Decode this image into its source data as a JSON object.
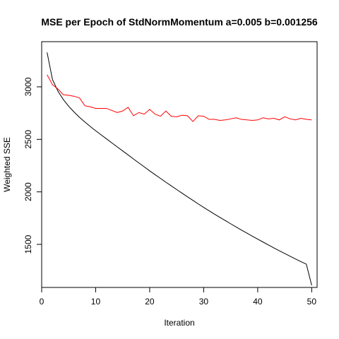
{
  "chart_data": {
    "type": "line",
    "title": "MSE per Epoch of StdNormMomentum a=0.005 b=0.001256",
    "xlabel": "Iteration",
    "ylabel": "Weighted SSE",
    "xlim": [
      0,
      51
    ],
    "ylim": [
      1090,
      3430
    ],
    "x_ticks": [
      0,
      10,
      20,
      30,
      40,
      50
    ],
    "y_ticks": [
      1500,
      2000,
      2500,
      3000
    ],
    "grid": false,
    "legend": "none",
    "x": [
      1,
      2,
      3,
      4,
      5,
      6,
      7,
      8,
      9,
      10,
      11,
      12,
      13,
      14,
      15,
      16,
      17,
      18,
      19,
      20,
      21,
      22,
      23,
      24,
      25,
      26,
      27,
      28,
      29,
      30,
      31,
      32,
      33,
      34,
      35,
      36,
      37,
      38,
      39,
      40,
      41,
      42,
      43,
      44,
      45,
      46,
      47,
      48,
      49,
      50
    ],
    "series": [
      {
        "color": "#000000",
        "values": [
          3328,
          3070,
          2960,
          2880,
          2815,
          2760,
          2710,
          2665,
          2622,
          2582,
          2543,
          2505,
          2466,
          2428,
          2390,
          2352,
          2313,
          2275,
          2238,
          2200,
          2164,
          2128,
          2092,
          2057,
          2022,
          1987,
          1953,
          1919,
          1885,
          1852,
          1820,
          1788,
          1757,
          1727,
          1696,
          1666,
          1636,
          1607,
          1578,
          1550,
          1522,
          1494,
          1466,
          1439,
          1413,
          1387,
          1361,
          1336,
          1312,
          1110
        ]
      },
      {
        "color": "#ff0000",
        "values": [
          3115,
          3020,
          2980,
          2925,
          2920,
          2910,
          2895,
          2820,
          2810,
          2795,
          2795,
          2795,
          2775,
          2755,
          2770,
          2805,
          2725,
          2755,
          2740,
          2785,
          2740,
          2720,
          2770,
          2720,
          2715,
          2730,
          2725,
          2670,
          2725,
          2720,
          2690,
          2690,
          2680,
          2685,
          2695,
          2705,
          2690,
          2685,
          2680,
          2685,
          2705,
          2695,
          2700,
          2685,
          2715,
          2695,
          2685,
          2700,
          2690,
          2685
        ]
      }
    ]
  }
}
